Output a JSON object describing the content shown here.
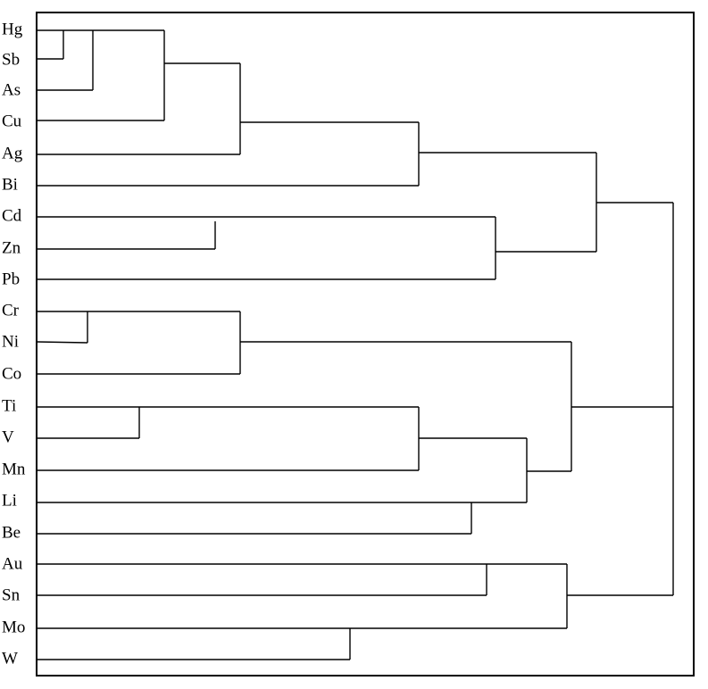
{
  "leaves": [
    "Hg",
    "Sb",
    "As",
    "Cu",
    "Ag",
    "Bi",
    "Cd",
    "Zn",
    "Pb",
    "Cr",
    "Ni",
    "Co",
    "Ti",
    "V",
    "Mn",
    "Li",
    "Be",
    "Au",
    "Sn",
    "Mo",
    "W"
  ]
}
